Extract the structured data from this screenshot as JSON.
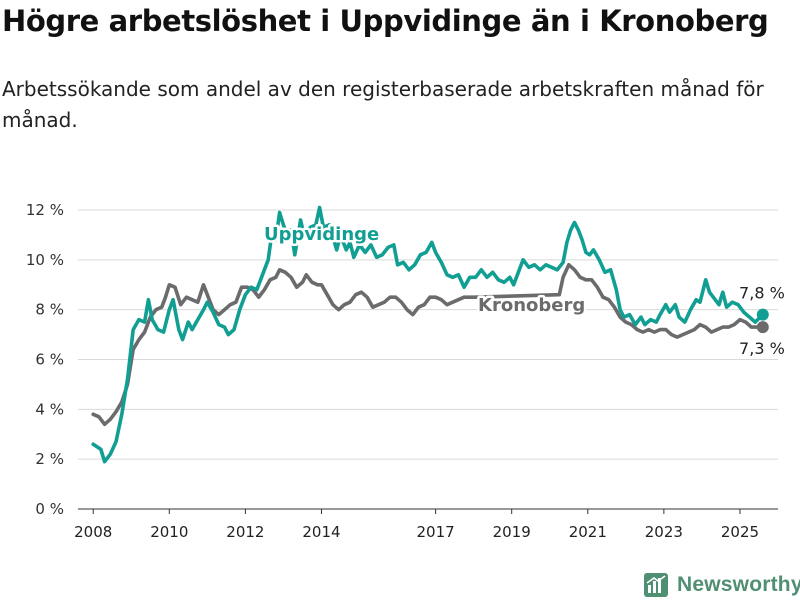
{
  "title": "Högre arbetslöshet i Uppvidinge än i Kronoberg",
  "subtitle": "Arbetssökande som andel av den registerbaserade arbetskraften månad för månad.",
  "brand": {
    "name": "Newsworthy",
    "icon": "newsworthy-logo-icon",
    "color": "#4f8f72"
  },
  "chart_data": {
    "type": "line",
    "title": "Högre arbetslöshet i Uppvidinge än i Kronoberg",
    "ylim": [
      0,
      12
    ],
    "xlim": [
      2007.6,
      2026.0
    ],
    "y_ticks": [
      0,
      2,
      4,
      6,
      8,
      10,
      12
    ],
    "y_tick_labels": [
      "0 %",
      "2 %",
      "4 %",
      "6 %",
      "8 %",
      "10 %",
      "12 %"
    ],
    "x_ticks": [
      2008,
      2010,
      2012,
      2014,
      2017,
      2019,
      2021,
      2023,
      2025
    ],
    "x_tick_labels": [
      "2008",
      "2010",
      "2012",
      "2014",
      "2017",
      "2019",
      "2021",
      "2023",
      "2025"
    ],
    "grid": "horizontal",
    "series": [
      {
        "name": "Uppvidinge",
        "color": "#119e93",
        "end_label": "7,8 %",
        "points": [
          [
            2008.0,
            2.6
          ],
          [
            2008.2,
            2.4
          ],
          [
            2008.3,
            1.9
          ],
          [
            2008.45,
            2.2
          ],
          [
            2008.6,
            2.7
          ],
          [
            2008.75,
            3.8
          ],
          [
            2008.9,
            5.2
          ],
          [
            2009.05,
            7.2
          ],
          [
            2009.2,
            7.6
          ],
          [
            2009.35,
            7.5
          ],
          [
            2009.45,
            8.4
          ],
          [
            2009.55,
            7.6
          ],
          [
            2009.7,
            7.2
          ],
          [
            2009.85,
            7.1
          ],
          [
            2010.0,
            8.0
          ],
          [
            2010.1,
            8.4
          ],
          [
            2010.25,
            7.2
          ],
          [
            2010.35,
            6.8
          ],
          [
            2010.5,
            7.5
          ],
          [
            2010.6,
            7.2
          ],
          [
            2010.75,
            7.6
          ],
          [
            2010.9,
            8.0
          ],
          [
            2011.0,
            8.3
          ],
          [
            2011.15,
            7.9
          ],
          [
            2011.3,
            7.4
          ],
          [
            2011.45,
            7.3
          ],
          [
            2011.55,
            7.0
          ],
          [
            2011.7,
            7.2
          ],
          [
            2011.85,
            8.0
          ],
          [
            2012.0,
            8.6
          ],
          [
            2012.15,
            8.9
          ],
          [
            2012.3,
            8.8
          ],
          [
            2012.45,
            9.4
          ],
          [
            2012.6,
            10.0
          ],
          [
            2012.7,
            11.1
          ],
          [
            2012.8,
            10.8
          ],
          [
            2012.9,
            11.9
          ],
          [
            2013.0,
            11.4
          ],
          [
            2013.1,
            11.0
          ],
          [
            2013.2,
            11.2
          ],
          [
            2013.3,
            10.2
          ],
          [
            2013.45,
            11.6
          ],
          [
            2013.55,
            10.9
          ],
          [
            2013.7,
            11.3
          ],
          [
            2013.85,
            11.4
          ],
          [
            2013.95,
            12.1
          ],
          [
            2014.05,
            11.3
          ],
          [
            2014.2,
            11.4
          ],
          [
            2014.3,
            10.9
          ],
          [
            2014.4,
            10.4
          ],
          [
            2014.5,
            11.0
          ],
          [
            2014.65,
            10.4
          ],
          [
            2014.75,
            10.7
          ],
          [
            2014.85,
            10.1
          ],
          [
            2015.0,
            10.6
          ],
          [
            2015.15,
            10.3
          ],
          [
            2015.3,
            10.6
          ],
          [
            2015.45,
            10.1
          ],
          [
            2015.6,
            10.2
          ],
          [
            2015.75,
            10.5
          ],
          [
            2015.9,
            10.6
          ],
          [
            2016.0,
            9.8
          ],
          [
            2016.15,
            9.9
          ],
          [
            2016.3,
            9.6
          ],
          [
            2016.45,
            9.8
          ],
          [
            2016.6,
            10.2
          ],
          [
            2016.75,
            10.3
          ],
          [
            2016.9,
            10.7
          ],
          [
            2017.0,
            10.3
          ],
          [
            2017.15,
            9.9
          ],
          [
            2017.3,
            9.4
          ],
          [
            2017.45,
            9.3
          ],
          [
            2017.6,
            9.4
          ],
          [
            2017.75,
            8.9
          ],
          [
            2017.9,
            9.3
          ],
          [
            2018.05,
            9.3
          ],
          [
            2018.2,
            9.6
          ],
          [
            2018.35,
            9.3
          ],
          [
            2018.5,
            9.5
          ],
          [
            2018.65,
            9.2
          ],
          [
            2018.8,
            9.1
          ],
          [
            2018.95,
            9.3
          ],
          [
            2019.05,
            9.0
          ],
          [
            2019.2,
            9.6
          ],
          [
            2019.3,
            10.0
          ],
          [
            2019.45,
            9.7
          ],
          [
            2019.6,
            9.8
          ],
          [
            2019.75,
            9.6
          ],
          [
            2019.9,
            9.8
          ],
          [
            2020.05,
            9.7
          ],
          [
            2020.2,
            9.6
          ],
          [
            2020.35,
            9.9
          ],
          [
            2020.45,
            10.7
          ],
          [
            2020.55,
            11.2
          ],
          [
            2020.65,
            11.5
          ],
          [
            2020.75,
            11.2
          ],
          [
            2020.85,
            10.8
          ],
          [
            2020.95,
            10.3
          ],
          [
            2021.05,
            10.2
          ],
          [
            2021.15,
            10.4
          ],
          [
            2021.3,
            10.0
          ],
          [
            2021.45,
            9.5
          ],
          [
            2021.6,
            9.6
          ],
          [
            2021.75,
            8.8
          ],
          [
            2021.85,
            8.0
          ],
          [
            2021.95,
            7.7
          ],
          [
            2022.1,
            7.8
          ],
          [
            2022.25,
            7.4
          ],
          [
            2022.4,
            7.7
          ],
          [
            2022.5,
            7.4
          ],
          [
            2022.65,
            7.6
          ],
          [
            2022.8,
            7.5
          ],
          [
            2022.9,
            7.8
          ],
          [
            2023.05,
            8.2
          ],
          [
            2023.15,
            7.9
          ],
          [
            2023.3,
            8.2
          ],
          [
            2023.4,
            7.7
          ],
          [
            2023.55,
            7.5
          ],
          [
            2023.7,
            8.0
          ],
          [
            2023.85,
            8.4
          ],
          [
            2023.95,
            8.3
          ],
          [
            2024.1,
            9.2
          ],
          [
            2024.2,
            8.7
          ],
          [
            2024.35,
            8.4
          ],
          [
            2024.45,
            8.2
          ],
          [
            2024.55,
            8.7
          ],
          [
            2024.65,
            8.1
          ],
          [
            2024.8,
            8.3
          ],
          [
            2024.95,
            8.2
          ],
          [
            2025.1,
            7.9
          ],
          [
            2025.25,
            7.7
          ],
          [
            2025.4,
            7.5
          ],
          [
            2025.6,
            7.8
          ]
        ]
      },
      {
        "name": "Kronoberg",
        "color": "#6b6b6e",
        "end_label": "7,3 %",
        "points": [
          [
            2008.0,
            3.8
          ],
          [
            2008.15,
            3.7
          ],
          [
            2008.3,
            3.4
          ],
          [
            2008.45,
            3.6
          ],
          [
            2008.6,
            3.9
          ],
          [
            2008.75,
            4.3
          ],
          [
            2008.9,
            5.0
          ],
          [
            2009.05,
            6.4
          ],
          [
            2009.2,
            6.8
          ],
          [
            2009.35,
            7.1
          ],
          [
            2009.5,
            7.7
          ],
          [
            2009.65,
            8.0
          ],
          [
            2009.8,
            8.1
          ],
          [
            2009.9,
            8.5
          ],
          [
            2010.0,
            9.0
          ],
          [
            2010.15,
            8.9
          ],
          [
            2010.3,
            8.2
          ],
          [
            2010.45,
            8.5
          ],
          [
            2010.6,
            8.4
          ],
          [
            2010.75,
            8.3
          ],
          [
            2010.9,
            9.0
          ],
          [
            2011.0,
            8.6
          ],
          [
            2011.15,
            8.0
          ],
          [
            2011.3,
            7.8
          ],
          [
            2011.45,
            8.0
          ],
          [
            2011.6,
            8.2
          ],
          [
            2011.75,
            8.3
          ],
          [
            2011.9,
            8.9
          ],
          [
            2012.05,
            8.9
          ],
          [
            2012.2,
            8.8
          ],
          [
            2012.35,
            8.5
          ],
          [
            2012.5,
            8.8
          ],
          [
            2012.65,
            9.2
          ],
          [
            2012.8,
            9.3
          ],
          [
            2012.9,
            9.6
          ],
          [
            2013.05,
            9.5
          ],
          [
            2013.2,
            9.3
          ],
          [
            2013.35,
            8.9
          ],
          [
            2013.5,
            9.1
          ],
          [
            2013.6,
            9.4
          ],
          [
            2013.75,
            9.1
          ],
          [
            2013.9,
            9.0
          ],
          [
            2014.0,
            9.0
          ],
          [
            2014.15,
            8.6
          ],
          [
            2014.3,
            8.2
          ],
          [
            2014.45,
            8.0
          ],
          [
            2014.6,
            8.2
          ],
          [
            2014.75,
            8.3
          ],
          [
            2014.9,
            8.6
          ],
          [
            2015.05,
            8.7
          ],
          [
            2015.2,
            8.5
          ],
          [
            2015.35,
            8.1
          ],
          [
            2015.5,
            8.2
          ],
          [
            2015.65,
            8.3
          ],
          [
            2015.8,
            8.5
          ],
          [
            2015.95,
            8.5
          ],
          [
            2016.1,
            8.3
          ],
          [
            2016.25,
            8.0
          ],
          [
            2016.4,
            7.8
          ],
          [
            2016.55,
            8.1
          ],
          [
            2016.7,
            8.2
          ],
          [
            2016.85,
            8.5
          ],
          [
            2017.0,
            8.5
          ],
          [
            2017.15,
            8.4
          ],
          [
            2017.3,
            8.2
          ],
          [
            2017.45,
            8.3
          ],
          [
            2017.6,
            8.4
          ],
          [
            2017.75,
            8.5
          ],
          [
            2018.0,
            8.5
          ],
          [
            2020.25,
            8.6
          ],
          [
            2020.35,
            9.3
          ],
          [
            2020.5,
            9.8
          ],
          [
            2020.65,
            9.6
          ],
          [
            2020.8,
            9.3
          ],
          [
            2020.95,
            9.2
          ],
          [
            2021.1,
            9.2
          ],
          [
            2021.25,
            8.9
          ],
          [
            2021.4,
            8.5
          ],
          [
            2021.55,
            8.4
          ],
          [
            2021.7,
            8.1
          ],
          [
            2021.85,
            7.7
          ],
          [
            2022.0,
            7.5
          ],
          [
            2022.15,
            7.4
          ],
          [
            2022.3,
            7.2
          ],
          [
            2022.45,
            7.1
          ],
          [
            2022.6,
            7.2
          ],
          [
            2022.75,
            7.1
          ],
          [
            2022.9,
            7.2
          ],
          [
            2023.05,
            7.2
          ],
          [
            2023.2,
            7.0
          ],
          [
            2023.35,
            6.9
          ],
          [
            2023.5,
            7.0
          ],
          [
            2023.65,
            7.1
          ],
          [
            2023.8,
            7.2
          ],
          [
            2023.95,
            7.4
          ],
          [
            2024.1,
            7.3
          ],
          [
            2024.25,
            7.1
          ],
          [
            2024.4,
            7.2
          ],
          [
            2024.55,
            7.3
          ],
          [
            2024.7,
            7.3
          ],
          [
            2024.85,
            7.4
          ],
          [
            2025.0,
            7.6
          ],
          [
            2025.15,
            7.5
          ],
          [
            2025.3,
            7.3
          ],
          [
            2025.6,
            7.3
          ]
        ]
      }
    ]
  }
}
